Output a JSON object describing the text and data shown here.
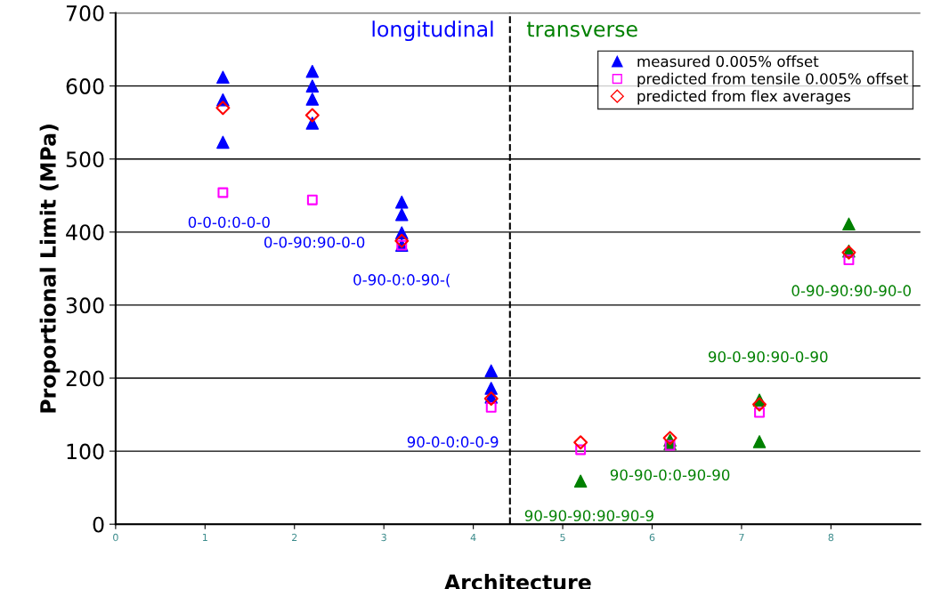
{
  "chart_data": {
    "type": "scatter",
    "xlabel": "Architecture",
    "ylabel": "Proportional Limit (MPa)",
    "xlim": [
      0,
      9
    ],
    "xticks": [
      0,
      1,
      2,
      3,
      4,
      5,
      6,
      7,
      8
    ],
    "ylim": [
      0,
      700
    ],
    "yticks": [
      0,
      100,
      200,
      300,
      400,
      500,
      600,
      700
    ],
    "grid": "y",
    "legend": "top right",
    "series": [
      {
        "name": "measured 0.005% offset",
        "color": "#0000ff",
        "marker": "triangle",
        "x": [
          1.2,
          1.2,
          1.2,
          2.2,
          2.2,
          2.2,
          2.2,
          3.2,
          3.2,
          3.2,
          3.2,
          4.2,
          4.2,
          4.2
        ],
        "values": [
          612,
          581,
          523,
          620,
          600,
          582,
          549,
          441,
          424,
          399,
          382,
          210,
          186,
          174
        ]
      },
      {
        "color": "#008000",
        "marker": "triangle",
        "x": [
          5.2,
          6.2,
          6.2,
          7.2,
          7.2,
          8.2,
          8.2
        ],
        "values": [
          59,
          115,
          110,
          170,
          113,
          411,
          374
        ]
      },
      {
        "name": "predicted from tensile 0.005% offset",
        "color": "#ff00ff",
        "marker": "square",
        "x": [
          1.2,
          2.2,
          3.2,
          4.2,
          5.2,
          6.2,
          7.2,
          8.2
        ],
        "values": [
          454,
          444,
          382,
          160,
          102,
          108,
          153,
          362
        ]
      },
      {
        "name": "predicted from flex averages",
        "color": "#ff0000",
        "marker": "diamond",
        "x": [
          1.2,
          2.2,
          3.2,
          4.2,
          5.2,
          6.2,
          7.2,
          8.2
        ],
        "values": [
          570,
          560,
          388,
          172,
          112,
          118,
          164,
          372
        ]
      }
    ],
    "ref_lines": [
      {
        "axis": "x",
        "value": 4.41,
        "color": "#000000",
        "line_style": "dashed"
      }
    ],
    "annotations": [
      "longitudinal",
      "transverse",
      {
        "text": "0-0-0:0-0-0",
        "x": 1.2,
        "y": 454
      },
      "0-0-90:90-0-0",
      {
        "text": "0-90-0:0-90-(",
        "x": 3.2,
        "y": 382
      },
      {
        "text": "90-0-0:0-0-9",
        "x": 4.2,
        "y": 160
      },
      {
        "text": "90-90-90:90-90-9",
        "x": 5.2,
        "y": 59
      },
      {
        "text": "90-90-0:0-90-90",
        "x": 6.2,
        "y": 108
      },
      {
        "text": "90-0-90:90-0-90",
        "x": 7.2,
        "y": 170
      },
      {
        "text": "0-90-90:90-90-0",
        "x": 8.2,
        "y": 362
      }
    ]
  }
}
